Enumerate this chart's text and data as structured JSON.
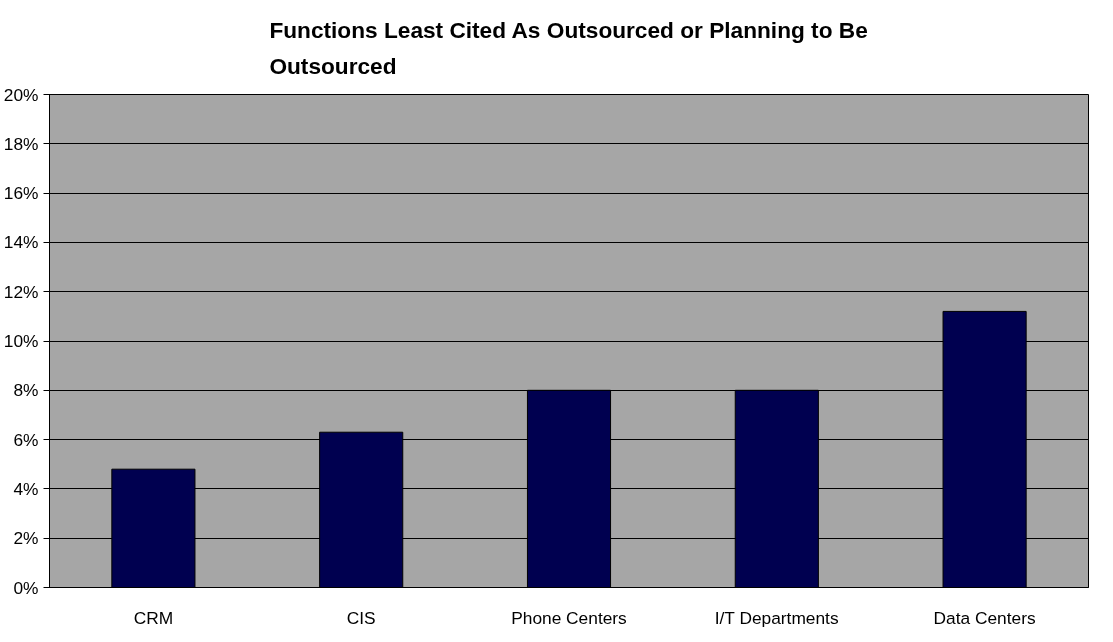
{
  "chart_data": {
    "type": "bar",
    "title": "Functions Least Cited As Outsourced or Planning to Be Outsourced",
    "categories": [
      "CRM",
      "CIS",
      "Phone Centers",
      "I/T Departments",
      "Data Centers"
    ],
    "values": [
      4.8,
      6.3,
      8.0,
      8.0,
      11.2
    ],
    "color": "#000050",
    "ylim": [
      0,
      20
    ],
    "yticks": [
      {
        "value": 0,
        "label": "0%"
      },
      {
        "value": 2,
        "label": "2%"
      },
      {
        "value": 4,
        "label": "4%"
      },
      {
        "value": 6,
        "label": "6%"
      },
      {
        "value": 8,
        "label": "8%"
      },
      {
        "value": 10,
        "label": "10%"
      },
      {
        "value": 12,
        "label": "12%"
      },
      {
        "value": 14,
        "label": "14%"
      },
      {
        "value": 16,
        "label": "16%"
      },
      {
        "value": 18,
        "label": "18%"
      },
      {
        "value": 20,
        "label": "20%"
      }
    ],
    "grid": "y"
  }
}
